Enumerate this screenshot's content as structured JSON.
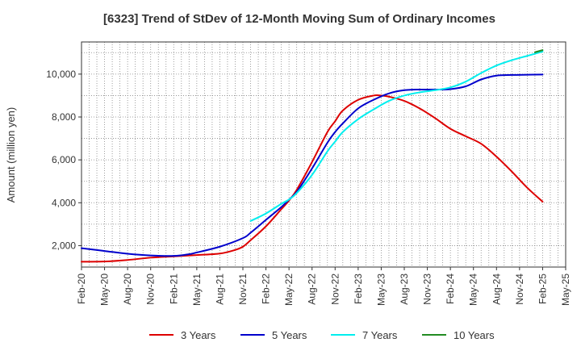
{
  "chart_data": {
    "type": "line",
    "title": "[6323]  Trend of StDev of 12-Month Moving Sum of Ordinary Incomes",
    "xlabel": "",
    "ylabel": "Amount (million yen)",
    "ylim": [
      1000,
      11500
    ],
    "yticks": [
      2000,
      4000,
      6000,
      8000,
      10000
    ],
    "ytick_labels": [
      "2,000",
      "4,000",
      "6,000",
      "8,000",
      "10,000"
    ],
    "x_range_index": [
      0,
      63
    ],
    "xtick_index": [
      0,
      3,
      6,
      9,
      12,
      15,
      18,
      21,
      24,
      27,
      30,
      33,
      36,
      39,
      42,
      45,
      48,
      51,
      54,
      57,
      60,
      63
    ],
    "xtick_labels": [
      "Feb-20",
      "May-20",
      "Aug-20",
      "Nov-20",
      "Feb-21",
      "May-21",
      "Aug-21",
      "Nov-21",
      "Feb-22",
      "May-22",
      "Aug-22",
      "Nov-22",
      "Feb-23",
      "May-23",
      "Aug-23",
      "Nov-23",
      "Feb-24",
      "May-24",
      "Aug-24",
      "Nov-24",
      "Feb-25",
      "May-25"
    ],
    "grid": true,
    "legend_position": "bottom",
    "series": [
      {
        "name": "3 Years",
        "color": "#dd0000",
        "points": [
          [
            0,
            1250
          ],
          [
            3,
            1260
          ],
          [
            6,
            1330
          ],
          [
            9,
            1440
          ],
          [
            12,
            1500
          ],
          [
            15,
            1560
          ],
          [
            18,
            1630
          ],
          [
            20,
            1800
          ],
          [
            21,
            1950
          ],
          [
            22,
            2250
          ],
          [
            24,
            2900
          ],
          [
            26,
            3700
          ],
          [
            27,
            4100
          ],
          [
            28,
            4600
          ],
          [
            30,
            5900
          ],
          [
            32,
            7300
          ],
          [
            33,
            7800
          ],
          [
            34,
            8300
          ],
          [
            36,
            8800
          ],
          [
            38,
            9000
          ],
          [
            39,
            9000
          ],
          [
            40,
            8950
          ],
          [
            42,
            8750
          ],
          [
            44,
            8400
          ],
          [
            46,
            7950
          ],
          [
            48,
            7450
          ],
          [
            50,
            7100
          ],
          [
            52,
            6750
          ],
          [
            54,
            6150
          ],
          [
            56,
            5450
          ],
          [
            58,
            4700
          ],
          [
            60,
            4050
          ]
        ]
      },
      {
        "name": "5 Years",
        "color": "#0000cc",
        "points": [
          [
            0,
            1880
          ],
          [
            3,
            1750
          ],
          [
            6,
            1620
          ],
          [
            9,
            1540
          ],
          [
            12,
            1520
          ],
          [
            14,
            1600
          ],
          [
            15,
            1680
          ],
          [
            18,
            1950
          ],
          [
            21,
            2350
          ],
          [
            22,
            2600
          ],
          [
            24,
            3200
          ],
          [
            26,
            3800
          ],
          [
            27,
            4150
          ],
          [
            28,
            4500
          ],
          [
            30,
            5600
          ],
          [
            32,
            6800
          ],
          [
            33,
            7300
          ],
          [
            34,
            7700
          ],
          [
            36,
            8400
          ],
          [
            38,
            8800
          ],
          [
            40,
            9100
          ],
          [
            42,
            9250
          ],
          [
            44,
            9280
          ],
          [
            46,
            9280
          ],
          [
            48,
            9300
          ],
          [
            50,
            9430
          ],
          [
            52,
            9750
          ],
          [
            54,
            9930
          ],
          [
            56,
            9960
          ],
          [
            58,
            9970
          ],
          [
            60,
            9980
          ]
        ]
      },
      {
        "name": "7 Years",
        "color": "#00eeee",
        "points": [
          [
            22,
            3150
          ],
          [
            24,
            3500
          ],
          [
            26,
            3950
          ],
          [
            27,
            4150
          ],
          [
            28,
            4450
          ],
          [
            30,
            5300
          ],
          [
            32,
            6400
          ],
          [
            33,
            6850
          ],
          [
            34,
            7300
          ],
          [
            36,
            7900
          ],
          [
            38,
            8350
          ],
          [
            40,
            8750
          ],
          [
            42,
            9000
          ],
          [
            44,
            9150
          ],
          [
            46,
            9250
          ],
          [
            48,
            9380
          ],
          [
            50,
            9650
          ],
          [
            52,
            10050
          ],
          [
            54,
            10400
          ],
          [
            56,
            10650
          ],
          [
            58,
            10850
          ],
          [
            60,
            11050
          ]
        ]
      },
      {
        "name": "10 Years",
        "color": "#228b22",
        "points": [
          [
            59,
            11020
          ],
          [
            60,
            11120
          ]
        ]
      }
    ]
  }
}
